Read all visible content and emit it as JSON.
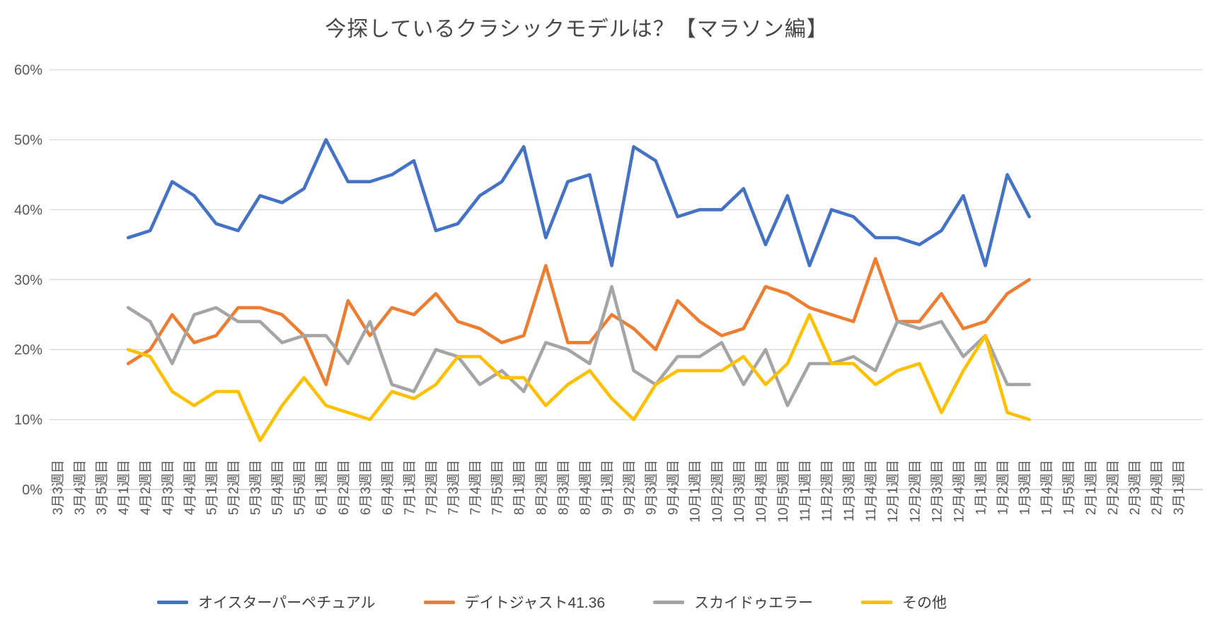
{
  "title": "今探しているクラシックモデルは？【マラソン編】",
  "chart_data": {
    "type": "line",
    "title": "今探しているクラシックモデルは？【マラソン編】",
    "x_labels": [
      "3月3週目",
      "3月4週目",
      "3月5週目",
      "4月1週目",
      "4月2週目",
      "4月3週目",
      "4月4週目",
      "5月1週目",
      "5月2週目",
      "5月3週目",
      "5月4週目",
      "5月5週目",
      "6月1週目",
      "6月2週目",
      "6月3週目",
      "6月4週目",
      "7月1週目",
      "7月2週目",
      "7月3週目",
      "7月4週目",
      "7月5週目",
      "8月1週目",
      "8月2週目",
      "8月3週目",
      "8月4週目",
      "9月1週目",
      "9月2週目",
      "9月3週目",
      "9月4週目",
      "10月1週目",
      "10月2週目",
      "10月3週目",
      "10月4週目",
      "10月5週目",
      "11月1週目",
      "11月2週目",
      "11月3週目",
      "11月4週目",
      "12月1週目",
      "12月2週目",
      "12月3週目",
      "12月4週目",
      "1月1週目",
      "1月2週目",
      "1月3週目",
      "1月4週目",
      "1月5週目",
      "2月1週目",
      "2月2週目",
      "2月3週目",
      "2月4週目",
      "3月1週目"
    ],
    "data_start_index": 3,
    "y_axis": {
      "min": 0,
      "max": 60,
      "step": 10,
      "tick_labels": [
        "0%",
        "10%",
        "20%",
        "30%",
        "40%",
        "50%",
        "60%"
      ]
    },
    "grid": true,
    "legend_position": "bottom",
    "series": [
      {
        "name": "オイスターパーペチュアル",
        "color": "#4472C4",
        "values": [
          36,
          37,
          44,
          42,
          38,
          37,
          42,
          41,
          43,
          50,
          44,
          44,
          45,
          47,
          37,
          38,
          42,
          44,
          49,
          36,
          44,
          45,
          32,
          49,
          47,
          39,
          40,
          40,
          43,
          35,
          42,
          32,
          40,
          39,
          36,
          36,
          35,
          37,
          42,
          32,
          45,
          39
        ]
      },
      {
        "name": "デイトジャスト41.36",
        "color": "#ED7D31",
        "values": [
          18,
          20,
          25,
          21,
          22,
          26,
          26,
          25,
          22,
          15,
          27,
          22,
          26,
          25,
          28,
          24,
          23,
          21,
          22,
          32,
          21,
          21,
          25,
          23,
          20,
          27,
          24,
          22,
          23,
          29,
          28,
          26,
          25,
          24,
          33,
          24,
          24,
          28,
          23,
          24,
          28,
          30
        ]
      },
      {
        "name": "スカイドゥエラー",
        "color": "#A5A5A5",
        "values": [
          26,
          24,
          18,
          25,
          26,
          24,
          24,
          21,
          22,
          22,
          18,
          24,
          15,
          14,
          20,
          19,
          15,
          17,
          14,
          21,
          20,
          18,
          29,
          17,
          15,
          19,
          19,
          21,
          15,
          20,
          12,
          18,
          18,
          19,
          17,
          24,
          23,
          24,
          19,
          22,
          15,
          15
        ]
      },
      {
        "name": "その他",
        "color": "#FFC000",
        "values": [
          20,
          19,
          14,
          12,
          14,
          14,
          7,
          12,
          16,
          12,
          11,
          10,
          14,
          13,
          15,
          19,
          19,
          16,
          16,
          12,
          15,
          17,
          13,
          10,
          15,
          17,
          17,
          17,
          19,
          15,
          18,
          25,
          18,
          18,
          15,
          17,
          18,
          11,
          17,
          22,
          11,
          10
        ]
      }
    ]
  },
  "colors": {
    "background": "#FFFFFF",
    "gridline": "#D9D9D9",
    "axis_line": "#BFBFBF",
    "axis_text": "#595959",
    "title_text": "#474747",
    "legend_text": "#404040"
  }
}
